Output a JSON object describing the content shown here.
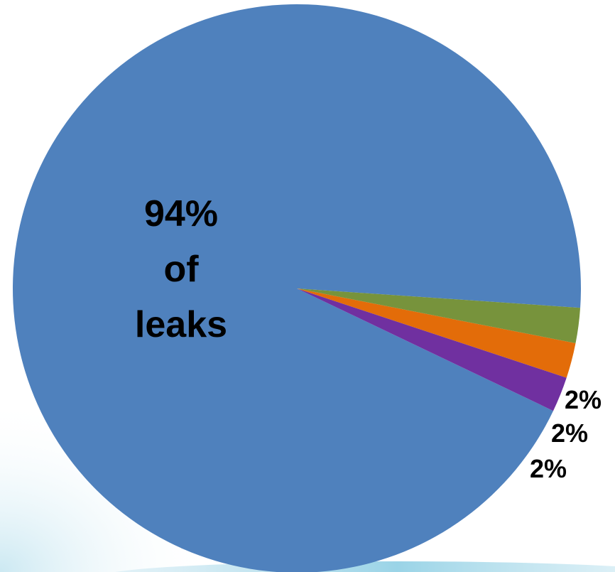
{
  "chart_data": {
    "type": "pie",
    "slices": [
      {
        "value": 94,
        "color": "#4f81bd",
        "label_lines": [
          "94%",
          "of",
          "leaks"
        ]
      },
      {
        "value": 2,
        "color": "#7030a0",
        "label": "2%"
      },
      {
        "value": 2,
        "color": "#e36c09",
        "label": "2%"
      },
      {
        "value": 2,
        "color": "#77933c",
        "label": "2%"
      }
    ]
  }
}
